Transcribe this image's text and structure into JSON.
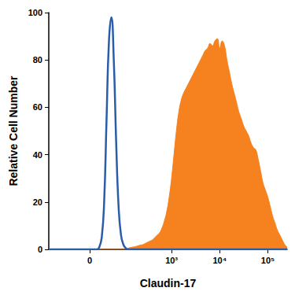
{
  "chart_data": {
    "type": "line",
    "x_label": "Claudin-17",
    "y_label": "Relative Cell Number",
    "categories": [
      null,
      null,
      null,
      null,
      null,
      null,
      null,
      null,
      null,
      null,
      null,
      null,
      null,
      null,
      null,
      null,
      null,
      "0",
      null,
      null,
      null,
      null,
      null,
      null,
      null,
      null,
      null,
      null,
      null,
      null,
      null,
      null,
      null,
      null,
      null,
      null,
      null,
      null,
      null,
      null,
      null,
      null,
      null,
      null,
      null,
      null,
      null,
      null,
      null,
      null,
      null,
      "10³",
      null,
      null,
      null,
      null,
      null,
      null,
      null,
      null,
      null,
      null,
      null,
      null,
      null,
      null,
      null,
      null,
      null,
      null,
      null,
      "10⁴",
      null,
      null,
      null,
      null,
      null,
      null,
      null,
      null,
      null,
      null,
      null,
      null,
      null,
      null,
      null,
      null,
      null,
      null,
      null,
      "10⁵",
      null,
      null,
      null,
      null,
      null,
      null,
      null,
      null
    ],
    "series": [
      {
        "type": "area",
        "color": "#f5821f",
        "values": [
          0,
          0,
          0,
          0,
          0,
          0,
          0,
          0,
          0,
          0,
          0,
          0,
          0,
          0,
          0,
          0,
          0,
          0,
          0,
          0,
          0,
          0,
          0,
          0,
          0,
          0,
          0,
          0,
          0,
          0,
          0,
          0,
          0,
          0.5,
          0.8,
          1,
          1.2,
          1.5,
          1.8,
          2,
          2.5,
          3,
          3.5,
          4,
          5,
          6,
          7,
          9,
          12,
          16,
          22,
          30,
          40,
          50,
          58,
          63,
          66,
          68,
          70,
          72,
          74,
          76,
          78,
          80,
          82,
          84,
          85,
          87,
          86,
          88,
          89,
          85,
          88,
          86,
          80,
          75,
          70,
          66,
          62,
          58,
          55,
          52,
          50,
          48,
          45,
          43,
          42,
          38,
          33,
          28,
          25,
          22,
          18,
          14,
          11,
          8,
          6,
          4,
          2,
          1
        ]
      },
      {
        "type": "line",
        "color": "#2a5caa",
        "values": [
          0,
          0,
          0,
          0,
          0,
          0,
          0,
          0,
          0,
          0,
          0,
          0,
          0,
          0,
          0,
          0,
          0,
          0,
          0,
          0,
          0,
          1,
          5,
          20,
          55,
          88,
          98,
          80,
          45,
          18,
          6,
          2,
          0.5,
          0,
          0,
          0,
          0,
          0,
          0,
          0,
          0,
          0,
          0,
          0,
          0,
          0,
          0,
          0,
          0,
          0,
          0,
          0,
          0,
          0,
          0,
          0,
          0,
          0,
          0,
          0,
          0,
          0,
          0,
          0,
          0,
          0,
          0,
          0,
          0,
          0,
          0,
          0,
          0,
          0,
          0,
          0,
          0,
          0,
          0,
          0,
          0,
          0,
          0,
          0,
          0,
          0,
          0,
          0,
          0,
          0,
          0,
          0,
          0,
          0,
          0,
          0,
          0,
          0,
          0,
          0
        ]
      }
    ],
    "ylim": [
      0,
      100
    ],
    "yticks": [
      0,
      20,
      40,
      60,
      80,
      100
    ],
    "grid": false
  }
}
